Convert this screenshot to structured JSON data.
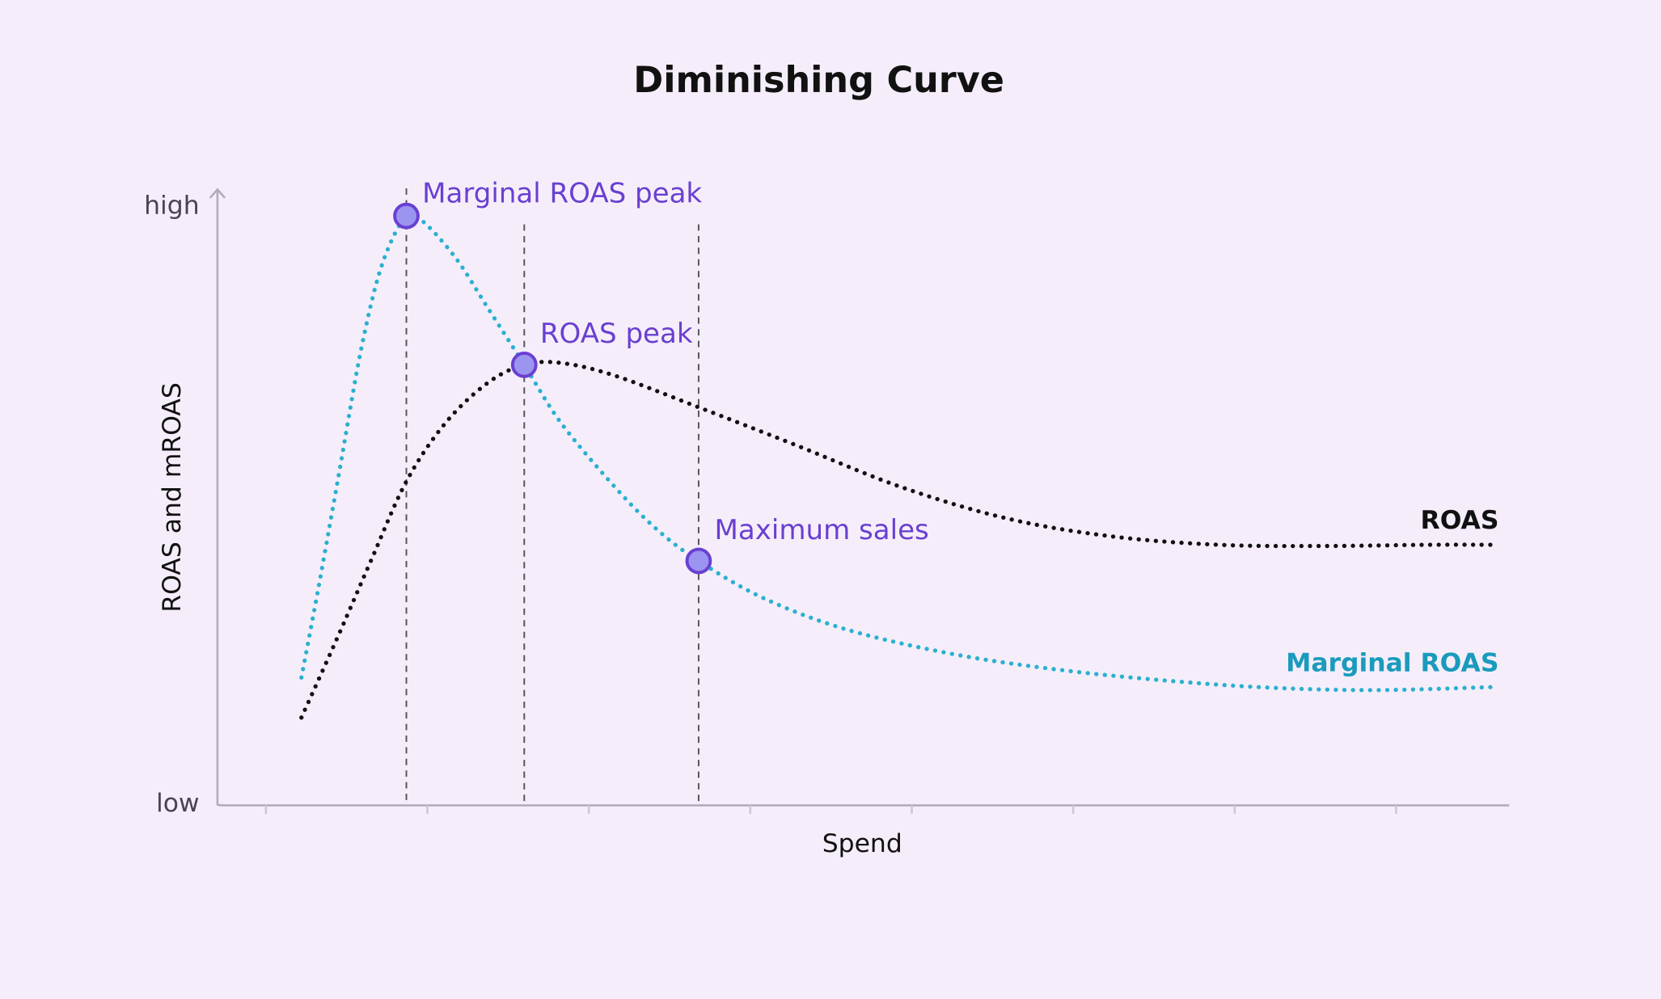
{
  "chart_data": {
    "type": "line",
    "title": "Diminishing Curve",
    "x_label": "Spend",
    "y_label": "ROAS and mROAS",
    "xlim": [
      0.7,
      8.7
    ],
    "xticks": [
      1,
      2,
      3,
      4,
      5,
      6,
      7,
      8
    ],
    "ylim": [
      0,
      100
    ],
    "yticks": [
      {
        "value": 0,
        "label": "low"
      },
      {
        "value": 100,
        "label": "high"
      }
    ],
    "series": [
      {
        "name": "ROAS",
        "color": "#111111",
        "x": [
          1.22,
          1.45,
          1.65,
          1.87,
          2.11,
          2.37,
          2.6,
          2.83,
          3.16,
          3.68,
          4.27,
          4.93,
          5.59,
          6.24,
          6.9,
          7.55,
          8.21,
          8.59
        ],
        "values": [
          14.5,
          28.3,
          40.7,
          54.0,
          63.7,
          70.4,
          73.5,
          73.8,
          71.7,
          66.4,
          60.2,
          53.1,
          47.8,
          44.8,
          43.4,
          43.2,
          43.4,
          43.4
        ]
      },
      {
        "name": "Marginal ROAS",
        "color": "#2bb0cf",
        "x": [
          1.22,
          1.32,
          1.45,
          1.59,
          1.72,
          1.87,
          1.98,
          2.18,
          2.37,
          2.6,
          2.83,
          3.16,
          3.42,
          3.68,
          4.08,
          4.6,
          5.26,
          5.91,
          6.57,
          7.22,
          7.88,
          8.59
        ],
        "values": [
          21.2,
          35.4,
          54.9,
          76.1,
          90.3,
          98.4,
          97.3,
          91.2,
          83.2,
          73.5,
          63.7,
          53.1,
          46.0,
          40.7,
          34.5,
          29.2,
          25.1,
          22.5,
          20.7,
          19.5,
          19.1,
          19.6
        ]
      }
    ],
    "annotations": [
      {
        "label": "Marginal ROAS peak",
        "x": 1.87,
        "y": 98.4
      },
      {
        "label": "ROAS peak",
        "x": 2.6,
        "y": 73.5
      },
      {
        "label": "Maximum sales",
        "x": 3.68,
        "y": 40.7
      }
    ]
  }
}
